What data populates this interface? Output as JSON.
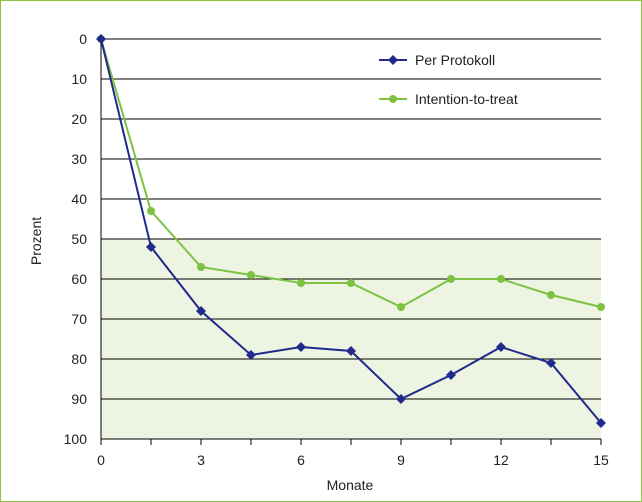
{
  "colors": {
    "frame": "#8cc63f",
    "shade": "#eef4e2",
    "grid": "#000000"
  },
  "chart_data": {
    "type": "line",
    "xlabel": "Monate",
    "ylabel": "Prozent",
    "xlim": [
      0,
      15
    ],
    "ylim": [
      0,
      100
    ],
    "y_reversed": true,
    "x_ticks": [
      "0",
      "3",
      "6",
      "9",
      "12",
      "15"
    ],
    "x_tick_values": [
      0,
      3,
      6,
      9,
      12,
      15
    ],
    "y_ticks": [
      "0",
      "10",
      "20",
      "30",
      "40",
      "50",
      "60",
      "70",
      "80",
      "90",
      "100"
    ],
    "y_tick_values": [
      0,
      10,
      20,
      30,
      40,
      50,
      60,
      70,
      80,
      90,
      100
    ],
    "x_minor_step": 1.5,
    "grid": "horizontal",
    "shaded_y_range": [
      50,
      100
    ],
    "legend_position": "top-right",
    "series": [
      {
        "name": "Per Protokoll",
        "color": "#1f2a8c",
        "marker": "diamond",
        "x": [
          0,
          1.5,
          3,
          4.5,
          6,
          7.5,
          9,
          10.5,
          12,
          13.5,
          15
        ],
        "y": [
          0,
          52,
          68,
          79,
          77,
          78,
          90,
          84,
          77,
          81,
          96
        ]
      },
      {
        "name": "Intention-to-treat",
        "color": "#7dc242",
        "marker": "circle",
        "x": [
          0,
          1.5,
          3,
          4.5,
          6,
          7.5,
          9,
          10.5,
          12,
          13.5,
          15
        ],
        "y": [
          0,
          43,
          57,
          59,
          61,
          61,
          67,
          60,
          60,
          64,
          67
        ]
      }
    ]
  }
}
